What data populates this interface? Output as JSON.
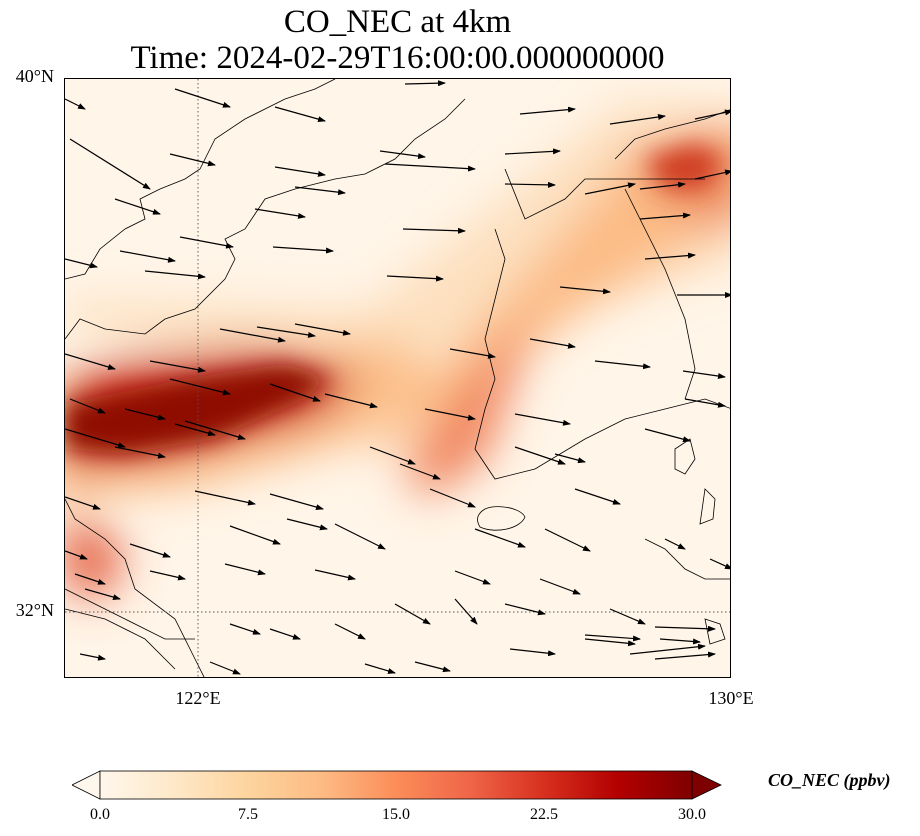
{
  "title_line1": "CO_NEC at 4km",
  "title_line2": "Time: 2024-02-29T16:00:00.000000000",
  "map": {
    "lat_labels": [
      "40°N",
      "32°N"
    ],
    "lon_labels": [
      "122°E",
      "130°E"
    ],
    "extent": {
      "lon_min": 120,
      "lon_max": 130,
      "lat_min": 31,
      "lat_max": 40
    },
    "gridlines": {
      "lon": 122,
      "lat": 32
    },
    "colors": {
      "coast": "#000000",
      "grid": "#555555",
      "arrow": "#000000"
    }
  },
  "colorbar": {
    "label": "CO_NEC (ppbv)",
    "ticks": [
      "0.0",
      "7.5",
      "15.0",
      "22.5",
      "30.0"
    ],
    "range": [
      0,
      30
    ],
    "colormap": [
      "#fff7ec",
      "#fee8c8",
      "#fdd49e",
      "#fdbb84",
      "#fc8d59",
      "#ef6548",
      "#d7301f",
      "#b30000",
      "#7f0000"
    ]
  }
}
